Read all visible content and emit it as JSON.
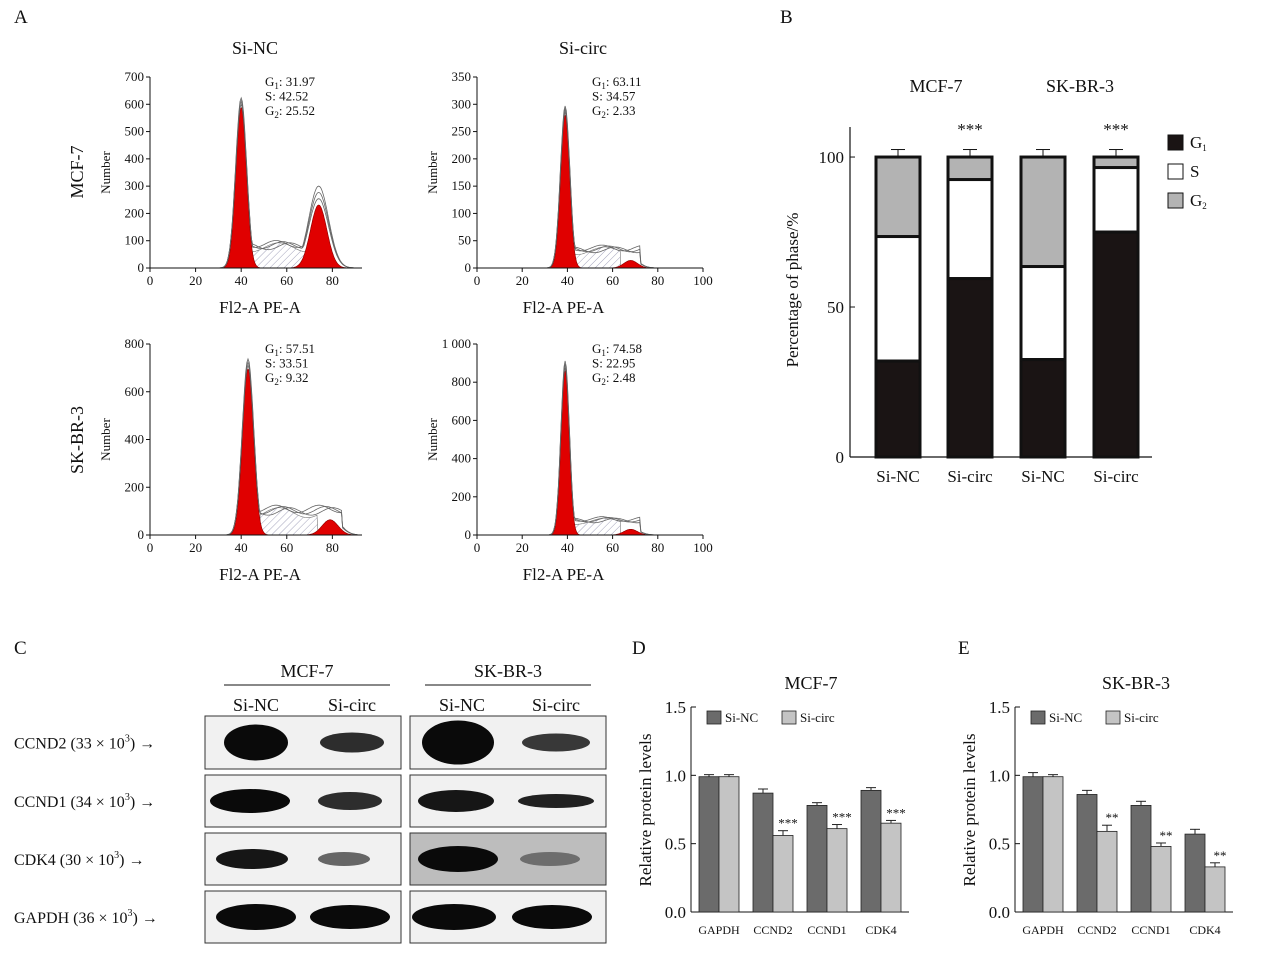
{
  "panels": {
    "A": "A",
    "B": "B",
    "C": "C",
    "D": "D",
    "E": "E"
  },
  "panel_a": {
    "col_titles": [
      "Si-NC",
      "Si-circ"
    ],
    "row_labels": [
      "MCF-7",
      "SK-BR-3"
    ],
    "xlabel": "Fl2-A PE-A",
    "ylabel": "Number",
    "histograms": [
      {
        "row": 0,
        "col": 0,
        "stats": [
          {
            "phase": "G",
            "sub": "1",
            "value": "31.97"
          },
          {
            "phase": "S",
            "sub": "",
            "value": "42.52"
          },
          {
            "phase": "G",
            "sub": "2",
            "value": "25.52"
          }
        ],
        "yticks": [
          "0",
          "100",
          "200",
          "300",
          "400",
          "500",
          "600",
          "700"
        ],
        "xticks": [
          "0",
          "20",
          "40",
          "60",
          "80"
        ]
      },
      {
        "row": 0,
        "col": 1,
        "stats": [
          {
            "phase": "G",
            "sub": "1",
            "value": "63.11"
          },
          {
            "phase": "S",
            "sub": "",
            "value": "34.57"
          },
          {
            "phase": "G",
            "sub": "2",
            "value": "2.33"
          }
        ],
        "yticks": [
          "0",
          "50",
          "100",
          "150",
          "200",
          "250",
          "300",
          "350"
        ],
        "xticks": [
          "0",
          "20",
          "40",
          "60",
          "80",
          "100"
        ]
      },
      {
        "row": 1,
        "col": 0,
        "stats": [
          {
            "phase": "G",
            "sub": "1",
            "value": "57.51"
          },
          {
            "phase": "S",
            "sub": "",
            "value": "33.51"
          },
          {
            "phase": "G",
            "sub": "2",
            "value": "9.32"
          }
        ],
        "yticks": [
          "0",
          "200",
          "400",
          "600",
          "800"
        ],
        "xticks": [
          "0",
          "20",
          "40",
          "60",
          "80"
        ]
      },
      {
        "row": 1,
        "col": 1,
        "stats": [
          {
            "phase": "G",
            "sub": "1",
            "value": "74.58"
          },
          {
            "phase": "S",
            "sub": "",
            "value": "22.95"
          },
          {
            "phase": "G",
            "sub": "2",
            "value": "2.48"
          }
        ],
        "yticks": [
          "0",
          "200",
          "400",
          "600",
          "800",
          "1 000"
        ],
        "xticks": [
          "0",
          "20",
          "40",
          "60",
          "80",
          "100"
        ]
      }
    ]
  },
  "panel_c": {
    "groups": [
      "MCF-7",
      "SK-BR-3"
    ],
    "lanes": [
      "Si-NC",
      "Si-circ",
      "Si-NC",
      "Si-circ"
    ],
    "proteins": [
      {
        "name": "CCND2 (33 × 10",
        "sup": "3",
        "tail": ") →"
      },
      {
        "name": "CCND1 (34 × 10",
        "sup": "3",
        "tail": ") →"
      },
      {
        "name": "CDK4 (30 × 10",
        "sup": "3",
        "tail": ") →"
      },
      {
        "name": "GAPDH (36 × 10",
        "sup": "3",
        "tail": ") →"
      }
    ]
  },
  "chart_data": [
    {
      "panel": "B",
      "type": "bar",
      "stacked": true,
      "groups": [
        "MCF-7",
        "SK-BR-3"
      ],
      "categories": [
        "Si-NC",
        "Si-circ",
        "Si-NC",
        "Si-circ"
      ],
      "ylabel": "Percentage of phase/%",
      "ylim": [
        0,
        100
      ],
      "yticks": [
        0,
        50,
        100
      ],
      "series": [
        {
          "name": "G",
          "sub": "1",
          "color": "#1a1414",
          "values": [
            32,
            59.5,
            32.5,
            75
          ]
        },
        {
          "name": "S",
          "sub": "",
          "color": "#ffffff",
          "values": [
            41.5,
            33,
            31,
            21.5
          ]
        },
        {
          "name": "G",
          "sub": "2",
          "color": "#b3b3b3",
          "values": [
            26.5,
            7.5,
            36.5,
            3.5
          ]
        }
      ],
      "significance": [
        "",
        "***",
        "",
        "***"
      ],
      "legend_position": "right"
    },
    {
      "panel": "D",
      "type": "bar",
      "title": "MCF-7",
      "categories": [
        "GAPDH",
        "CCND2",
        "CCND1",
        "CDK4"
      ],
      "ylabel": "Relative protein levels",
      "ylim": [
        0,
        1.5
      ],
      "yticks": [
        "0.0",
        "0.5",
        "1.0",
        "1.5"
      ],
      "series": [
        {
          "name": "Si-NC",
          "color": "#6b6b6b",
          "values": [
            0.99,
            0.87,
            0.78,
            0.89
          ],
          "errors": [
            0.015,
            0.03,
            0.02,
            0.02
          ]
        },
        {
          "name": "Si-circ",
          "color": "#c4c4c4",
          "values": [
            0.99,
            0.56,
            0.61,
            0.65
          ],
          "errors": [
            0.015,
            0.035,
            0.03,
            0.02
          ]
        }
      ],
      "significance": [
        "",
        "***",
        "***",
        "***"
      ],
      "legend_position": "top-left"
    },
    {
      "panel": "E",
      "type": "bar",
      "title": "SK-BR-3",
      "categories": [
        "GAPDH",
        "CCND2",
        "CCND1",
        "CDK4"
      ],
      "ylabel": "Relative protein levels",
      "ylim": [
        0,
        1.5
      ],
      "yticks": [
        "0.0",
        "0.5",
        "1.0",
        "1.5"
      ],
      "series": [
        {
          "name": "Si-NC",
          "color": "#6b6b6b",
          "values": [
            0.99,
            0.86,
            0.78,
            0.57
          ],
          "errors": [
            0.03,
            0.03,
            0.03,
            0.035
          ]
        },
        {
          "name": "Si-circ",
          "color": "#c4c4c4",
          "values": [
            0.99,
            0.59,
            0.48,
            0.33
          ],
          "errors": [
            0.015,
            0.045,
            0.025,
            0.03
          ]
        }
      ],
      "significance": [
        "",
        "**",
        "**",
        "**"
      ],
      "legend_position": "top-left"
    }
  ]
}
